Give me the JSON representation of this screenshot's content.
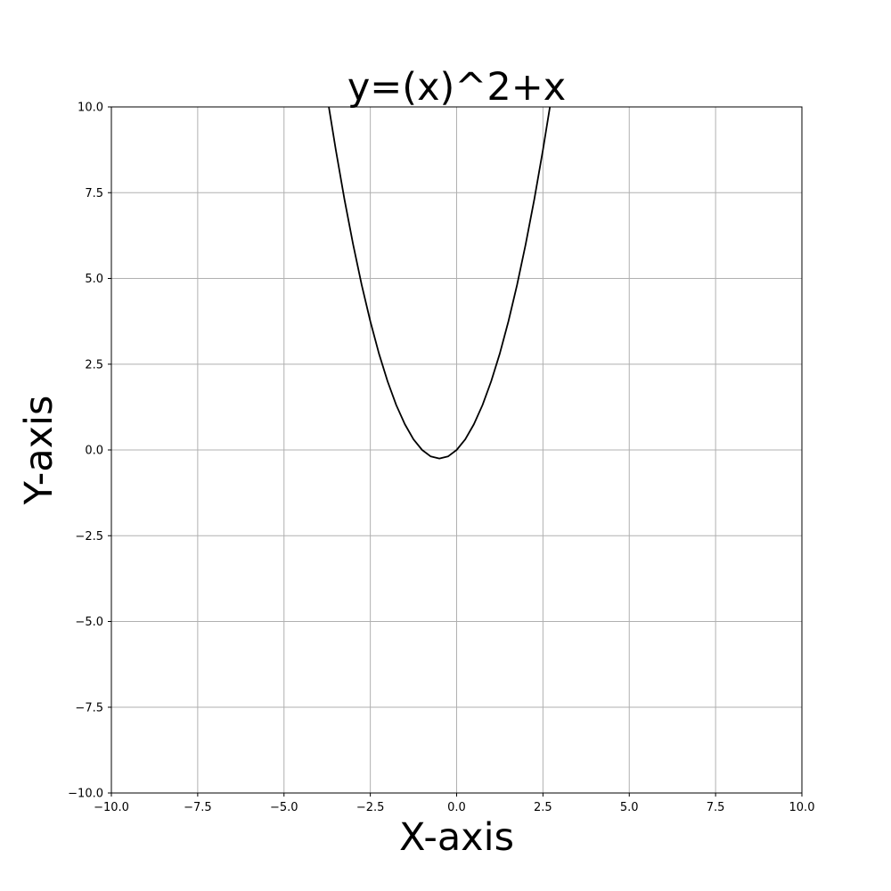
{
  "chart_data": {
    "type": "line",
    "title": "y=(x)^2+x",
    "xlabel": "X-axis",
    "ylabel": "Y-axis",
    "xlim": [
      -10,
      10
    ],
    "ylim": [
      -10,
      10
    ],
    "grid": true,
    "x_ticks": [
      -10,
      -7.5,
      -5,
      -2.5,
      0,
      2.5,
      5,
      7.5,
      10
    ],
    "y_ticks": [
      -10,
      -7.5,
      -5,
      -2.5,
      0,
      2.5,
      5,
      7.5,
      10
    ],
    "x_tick_labels": [
      "−10.0",
      "−7.5",
      "−5.0",
      "−2.5",
      "0.0",
      "2.5",
      "5.0",
      "7.5",
      "10.0"
    ],
    "y_tick_labels": [
      "−10.0",
      "−7.5",
      "−5.0",
      "−2.5",
      "0.0",
      "2.5",
      "5.0",
      "7.5",
      "10.0"
    ],
    "series": [
      {
        "color": "#000000",
        "x": [
          -3.7,
          -3.5,
          -3.25,
          -3.0,
          -2.75,
          -2.5,
          -2.25,
          -2.0,
          -1.75,
          -1.5,
          -1.25,
          -1.0,
          -0.75,
          -0.5,
          -0.25,
          0.0,
          0.25,
          0.5,
          0.75,
          1.0,
          1.25,
          1.5,
          1.75,
          2.0,
          2.25,
          2.5,
          2.7
        ],
        "y": [
          9.99,
          8.75,
          7.31,
          6.0,
          4.81,
          3.75,
          2.81,
          2.0,
          1.31,
          0.75,
          0.31,
          0.0,
          -0.19,
          -0.25,
          -0.19,
          0.0,
          0.31,
          0.75,
          1.31,
          2.0,
          2.81,
          3.75,
          4.81,
          6.0,
          7.31,
          8.75,
          9.99
        ]
      }
    ],
    "colors": {
      "grid": "#b0b0b0",
      "axes": "#000000",
      "background": "#ffffff"
    }
  }
}
